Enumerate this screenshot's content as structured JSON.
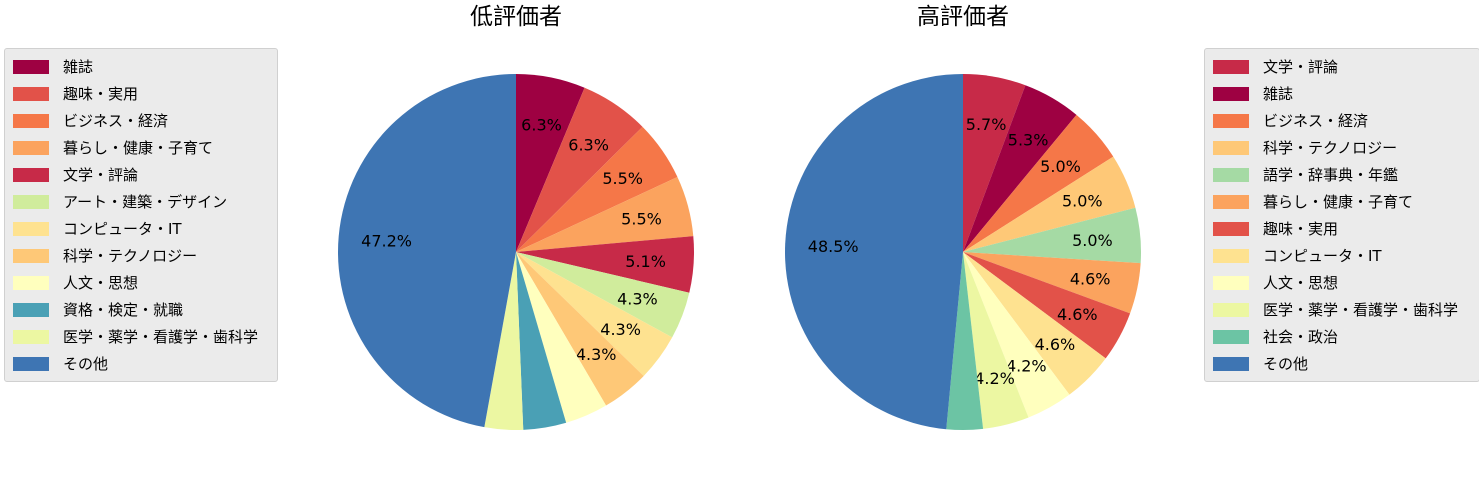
{
  "colors": {
    "雑誌": "#9e0142",
    "趣味・実用": "#e25249",
    "ビジネス・経済": "#f57748",
    "暮らし・健康・子育て": "#fba35e",
    "文学・評論": "#c72a48",
    "アート・建築・デザイン": "#d0ec9c",
    "コンピュータ・IT": "#fee290",
    "科学・テクノロジー": "#fec877",
    "人文・思想": "#ffffbe",
    "資格・検定・就職": "#4aa0b5",
    "医学・薬学・看護学・歯科学": "#ecf7a2",
    "語学・辞事典・年鑑": "#a5daa4",
    "社会・政治": "#6cc4a4",
    "その他": "#3e75b3"
  },
  "chart_data": [
    {
      "type": "pie",
      "title": "低評価者",
      "labels": [
        "雑誌",
        "趣味・実用",
        "ビジネス・経済",
        "暮らし・健康・子育て",
        "文学・評論",
        "アート・建築・デザイン",
        "コンピュータ・IT",
        "科学・テクノロジー",
        "人文・思想",
        "資格・検定・就職",
        "医学・薬学・看護学・歯科学",
        "その他"
      ],
      "values": [
        6.3,
        6.3,
        5.5,
        5.5,
        5.1,
        4.3,
        4.3,
        4.3,
        3.9,
        3.9,
        3.5,
        47.2
      ],
      "value_labels": [
        "6.3%",
        "6.3%",
        "5.5%",
        "5.5%",
        "5.1%",
        "4.3%",
        "4.3%",
        "4.3%",
        "",
        "",
        "",
        "47.2%"
      ],
      "legend_position": "left"
    },
    {
      "type": "pie",
      "title": "高評価者",
      "labels": [
        "文学・評論",
        "雑誌",
        "ビジネス・経済",
        "科学・テクノロジー",
        "語学・辞事典・年鑑",
        "暮らし・健康・子育て",
        "趣味・実用",
        "コンピュータ・IT",
        "人文・思想",
        "医学・薬学・看護学・歯科学",
        "社会・政治",
        "その他"
      ],
      "values": [
        5.7,
        5.3,
        5.0,
        5.0,
        5.0,
        4.6,
        4.6,
        4.6,
        4.2,
        4.2,
        3.3,
        48.5
      ],
      "value_labels": [
        "5.7%",
        "5.3%",
        "5.0%",
        "5.0%",
        "5.0%",
        "4.6%",
        "4.6%",
        "4.6%",
        "4.2%",
        "4.2%",
        "",
        "48.5%"
      ],
      "legend_position": "right"
    }
  ]
}
